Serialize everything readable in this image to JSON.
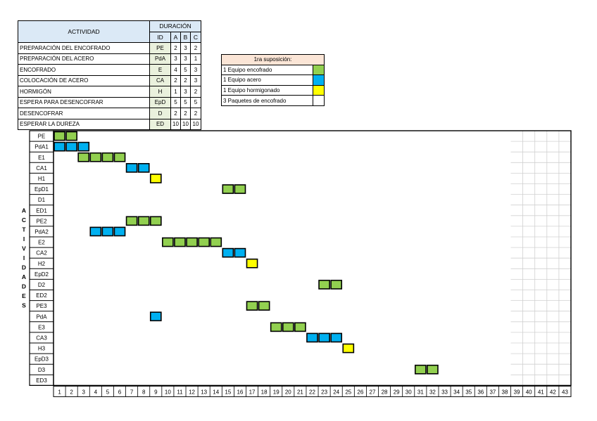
{
  "table": {
    "header_actividad": "ACTIVIDAD",
    "header_duracion": "DURACIÓN",
    "header_id": "ID",
    "header_a": "A",
    "header_b": "B",
    "header_c": "C",
    "rows": [
      {
        "name": "PREPARACIÓN DEL ENCOFRADO",
        "id": "PE",
        "a": "2",
        "b": "3",
        "c": "2"
      },
      {
        "name": "PREPARACIÓN DEL ACERO",
        "id": "PdA",
        "a": "3",
        "b": "3",
        "c": "1"
      },
      {
        "name": "ENCOFRADO",
        "id": "E",
        "a": "4",
        "b": "5",
        "c": "3"
      },
      {
        "name": "COLOCACIÓN DE ACERO",
        "id": "CA",
        "a": "2",
        "b": "2",
        "c": "3"
      },
      {
        "name": "HORMIGÓN",
        "id": "H",
        "a": "1",
        "b": "3",
        "c": "2"
      },
      {
        "name": "ESPERA PARA DESENCOFRAR",
        "id": "EpD",
        "a": "5",
        "b": "5",
        "c": "5"
      },
      {
        "name": "DESENCOFRAR",
        "id": "D",
        "a": "2",
        "b": "2",
        "c": "2"
      },
      {
        "name": "ESPERAR LA DUREZA",
        "id": "ED",
        "a": "10",
        "b": "10",
        "c": "10"
      }
    ]
  },
  "legend": {
    "title": "1ra suposición:",
    "items": [
      {
        "label": "1 Equipo encofrado",
        "color": "#92d050"
      },
      {
        "label": "1 Equipo acero",
        "color": "#00b0f0"
      },
      {
        "label": "1 Equipo hormigonado",
        "color": "#ffff00"
      },
      {
        "label": "3 Paquetes de encofrado",
        "color": "#ffffff"
      }
    ]
  },
  "chart_data": {
    "type": "gantt",
    "vertical_label": "ACTIVIDADES",
    "x": [
      1,
      2,
      3,
      4,
      5,
      6,
      7,
      8,
      9,
      10,
      11,
      12,
      13,
      14,
      15,
      16,
      17,
      18,
      19,
      20,
      21,
      22,
      23,
      24,
      25,
      26,
      27,
      28,
      29,
      30,
      31,
      32,
      33,
      34,
      35,
      36,
      37,
      38,
      39,
      40,
      41,
      42,
      43
    ],
    "colors": {
      "green": "#92d050",
      "blue": "#00b0f0",
      "yellow": "#ffff00"
    },
    "rows": [
      {
        "label": "PE",
        "start": 1,
        "end": 2,
        "color": "green"
      },
      {
        "label": "PdA1",
        "start": 1,
        "end": 3,
        "color": "blue"
      },
      {
        "label": "E1",
        "start": 3,
        "end": 6,
        "color": "green"
      },
      {
        "label": "CA1",
        "start": 7,
        "end": 8,
        "color": "blue"
      },
      {
        "label": "H1",
        "start": 9,
        "end": 9,
        "color": "yellow"
      },
      {
        "label": "EpD1",
        "start": 15,
        "end": 16,
        "color": "green"
      },
      {
        "label": "D1",
        "start": null,
        "end": null,
        "color": null
      },
      {
        "label": "ED1",
        "start": null,
        "end": null,
        "color": null
      },
      {
        "label": "PE2",
        "start": 7,
        "end": 9,
        "color": "green"
      },
      {
        "label": "PdA2",
        "start": 4,
        "end": 6,
        "color": "blue"
      },
      {
        "label": "E2",
        "start": 10,
        "end": 14,
        "color": "green"
      },
      {
        "label": "CA2",
        "start": 15,
        "end": 16,
        "color": "blue"
      },
      {
        "label": "H2",
        "start": 17,
        "end": 17,
        "color": "yellow"
      },
      {
        "label": "EpD2",
        "start": null,
        "end": null,
        "color": null
      },
      {
        "label": "D2",
        "start": 23,
        "end": 24,
        "color": "green"
      },
      {
        "label": "ED2",
        "start": null,
        "end": null,
        "color": null
      },
      {
        "label": "PE3",
        "start": 17,
        "end": 18,
        "color": "green"
      },
      {
        "label": "PdA",
        "start": 9,
        "end": 9,
        "color": "blue"
      },
      {
        "label": "E3",
        "start": 19,
        "end": 21,
        "color": "green"
      },
      {
        "label": "CA3",
        "start": 22,
        "end": 24,
        "color": "blue"
      },
      {
        "label": "H3",
        "start": 25,
        "end": 25,
        "color": "yellow"
      },
      {
        "label": "EpD3",
        "start": null,
        "end": null,
        "color": null
      },
      {
        "label": "D3",
        "start": 31,
        "end": 32,
        "color": "green"
      },
      {
        "label": "ED3",
        "start": null,
        "end": null,
        "color": null
      }
    ]
  }
}
